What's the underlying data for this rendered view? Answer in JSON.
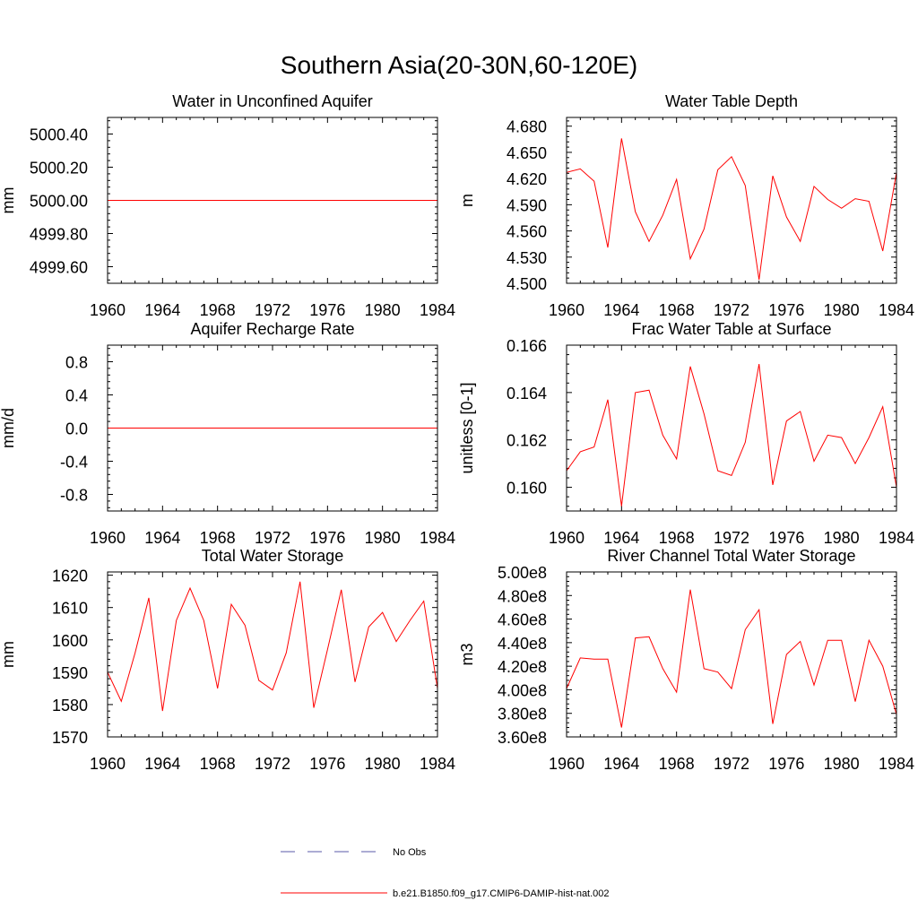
{
  "figure": {
    "title": "Southern Asia(20-30N,60-120E)"
  },
  "legend": [
    {
      "label": "No Obs",
      "color": "#5a5aa8",
      "style": "dashed"
    },
    {
      "label": "b.e21.B1850.f09_g17.CMIP6-DAMIP-hist-nat.002",
      "color": "#ff0000",
      "style": "solid"
    }
  ],
  "chart_data": [
    {
      "type": "line",
      "title": "Water in Unconfined Aquifer",
      "ylabel": "mm",
      "xlim": [
        1960,
        1984
      ],
      "ylim": [
        4999.5,
        5000.5
      ],
      "xticks": [
        1960,
        1964,
        1968,
        1972,
        1976,
        1980,
        1984
      ],
      "xtick_labels": [
        "1960",
        "1964",
        "1968",
        "1972",
        "1976",
        "1980",
        "1984"
      ],
      "yticks": [
        4999.6,
        4999.8,
        5000.0,
        5000.2,
        5000.4
      ],
      "ytick_labels": [
        "4999.60",
        "4999.80",
        "5000.00",
        "5000.20",
        "5000.40"
      ],
      "x": [
        1960,
        1961,
        1962,
        1963,
        1964,
        1965,
        1966,
        1967,
        1968,
        1969,
        1970,
        1971,
        1972,
        1973,
        1974,
        1975,
        1976,
        1977,
        1978,
        1979,
        1980,
        1981,
        1982,
        1983,
        1984
      ],
      "series": [
        {
          "color": "#ff0000",
          "values": [
            5000,
            5000,
            5000,
            5000,
            5000,
            5000,
            5000,
            5000,
            5000,
            5000,
            5000,
            5000,
            5000,
            5000,
            5000,
            5000,
            5000,
            5000,
            5000,
            5000,
            5000,
            5000,
            5000,
            5000,
            5000
          ]
        }
      ]
    },
    {
      "type": "line",
      "title": "Water Table Depth",
      "ylabel": "m",
      "xlim": [
        1960,
        1984
      ],
      "ylim": [
        4.5,
        4.69
      ],
      "xticks": [
        1960,
        1964,
        1968,
        1972,
        1976,
        1980,
        1984
      ],
      "xtick_labels": [
        "1960",
        "1964",
        "1968",
        "1972",
        "1976",
        "1980",
        "1984"
      ],
      "yticks": [
        4.5,
        4.53,
        4.56,
        4.59,
        4.62,
        4.65,
        4.68
      ],
      "ytick_labels": [
        "4.500",
        "4.530",
        "4.560",
        "4.590",
        "4.620",
        "4.650",
        "4.680"
      ],
      "x": [
        1960,
        1961,
        1962,
        1963,
        1964,
        1965,
        1966,
        1967,
        1968,
        1969,
        1970,
        1971,
        1972,
        1973,
        1974,
        1975,
        1976,
        1977,
        1978,
        1979,
        1980,
        1981,
        1982,
        1983,
        1984
      ],
      "series": [
        {
          "color": "#ff0000",
          "values": [
            4.627,
            4.631,
            4.617,
            4.541,
            4.666,
            4.582,
            4.548,
            4.578,
            4.619,
            4.528,
            4.562,
            4.63,
            4.645,
            4.612,
            4.504,
            4.623,
            4.576,
            4.548,
            4.611,
            4.596,
            4.586,
            4.597,
            4.594,
            4.537,
            4.627
          ]
        }
      ]
    },
    {
      "type": "line",
      "title": "Aquifer Recharge Rate",
      "ylabel": "mm/d",
      "xlim": [
        1960,
        1984
      ],
      "ylim": [
        -1.0,
        1.0
      ],
      "xticks": [
        1960,
        1964,
        1968,
        1972,
        1976,
        1980,
        1984
      ],
      "xtick_labels": [
        "1960",
        "1964",
        "1968",
        "1972",
        "1976",
        "1980",
        "1984"
      ],
      "yticks": [
        -0.8,
        -0.4,
        0.0,
        0.4,
        0.8
      ],
      "ytick_labels": [
        "-0.8",
        "-0.4",
        "0.0",
        "0.4",
        "0.8"
      ],
      "x": [
        1960,
        1961,
        1962,
        1963,
        1964,
        1965,
        1966,
        1967,
        1968,
        1969,
        1970,
        1971,
        1972,
        1973,
        1974,
        1975,
        1976,
        1977,
        1978,
        1979,
        1980,
        1981,
        1982,
        1983,
        1984
      ],
      "series": [
        {
          "color": "#ff0000",
          "values": [
            0,
            0,
            0,
            0,
            0,
            0,
            0,
            0,
            0,
            0,
            0,
            0,
            0,
            0,
            0,
            0,
            0,
            0,
            0,
            0,
            0,
            0,
            0,
            0,
            0
          ]
        }
      ]
    },
    {
      "type": "line",
      "title": "Frac Water Table at Surface",
      "ylabel": "unitless [0-1]",
      "xlim": [
        1960,
        1984
      ],
      "ylim": [
        0.159,
        0.166
      ],
      "xticks": [
        1960,
        1964,
        1968,
        1972,
        1976,
        1980,
        1984
      ],
      "xtick_labels": [
        "1960",
        "1964",
        "1968",
        "1972",
        "1976",
        "1980",
        "1984"
      ],
      "yticks": [
        0.16,
        0.162,
        0.164,
        0.166
      ],
      "ytick_labels": [
        "0.160",
        "0.162",
        "0.164",
        "0.166"
      ],
      "x": [
        1960,
        1961,
        1962,
        1963,
        1964,
        1965,
        1966,
        1967,
        1968,
        1969,
        1970,
        1971,
        1972,
        1973,
        1974,
        1975,
        1976,
        1977,
        1978,
        1979,
        1980,
        1981,
        1982,
        1983,
        1984
      ],
      "series": [
        {
          "color": "#ff0000",
          "values": [
            0.1607,
            0.1615,
            0.1617,
            0.1637,
            0.1592,
            0.164,
            0.1641,
            0.1622,
            0.1612,
            0.1651,
            0.1631,
            0.1607,
            0.1605,
            0.1619,
            0.1652,
            0.1601,
            0.1628,
            0.1632,
            0.1611,
            0.1622,
            0.1621,
            0.161,
            0.1621,
            0.1634,
            0.16
          ]
        }
      ]
    },
    {
      "type": "line",
      "title": "Total Water Storage",
      "ylabel": "mm",
      "xlim": [
        1960,
        1984
      ],
      "ylim": [
        1570,
        1621
      ],
      "xticks": [
        1960,
        1964,
        1968,
        1972,
        1976,
        1980,
        1984
      ],
      "xtick_labels": [
        "1960",
        "1964",
        "1968",
        "1972",
        "1976",
        "1980",
        "1984"
      ],
      "yticks": [
        1570,
        1580,
        1590,
        1600,
        1610,
        1620
      ],
      "ytick_labels": [
        "1570",
        "1580",
        "1590",
        "1600",
        "1610",
        "1620"
      ],
      "x": [
        1960,
        1961,
        1962,
        1963,
        1964,
        1965,
        1966,
        1967,
        1968,
        1969,
        1970,
        1971,
        1972,
        1973,
        1974,
        1975,
        1976,
        1977,
        1978,
        1979,
        1980,
        1981,
        1982,
        1983,
        1984
      ],
      "series": [
        {
          "color": "#ff0000",
          "values": [
            1590,
            1581,
            1596,
            1613,
            1578,
            1606,
            1616,
            1606,
            1585,
            1611,
            1604.5,
            1587.5,
            1584.5,
            1596,
            1618,
            1579,
            1597,
            1615.5,
            1587,
            1604,
            1608.5,
            1599.5,
            1606,
            1612,
            1585
          ]
        }
      ]
    },
    {
      "type": "line",
      "title": "River Channel Total Water Storage",
      "ylabel": "m3",
      "xlim": [
        1960,
        1984
      ],
      "ylim": [
        360000000,
        500000000
      ],
      "xticks": [
        1960,
        1964,
        1968,
        1972,
        1976,
        1980,
        1984
      ],
      "xtick_labels": [
        "1960",
        "1964",
        "1968",
        "1972",
        "1976",
        "1980",
        "1984"
      ],
      "yticks": [
        360000000,
        380000000,
        400000000,
        420000000,
        440000000,
        460000000,
        480000000,
        500000000
      ],
      "ytick_labels": [
        "3.60e8",
        "3.80e8",
        "4.00e8",
        "4.20e8",
        "4.40e8",
        "4.60e8",
        "4.80e8",
        "5.00e8"
      ],
      "x": [
        1960,
        1961,
        1962,
        1963,
        1964,
        1965,
        1966,
        1967,
        1968,
        1969,
        1970,
        1971,
        1972,
        1973,
        1974,
        1975,
        1976,
        1977,
        1978,
        1979,
        1980,
        1981,
        1982,
        1983,
        1984
      ],
      "series": [
        {
          "color": "#ff0000",
          "values": [
            401000000,
            427000000,
            426000000,
            426000000,
            368000000,
            444000000,
            445000000,
            418000000,
            398000000,
            485000000,
            418000000,
            415000000,
            401000000,
            451000000,
            468000000,
            371000000,
            430000000,
            441000000,
            404000000,
            442000000,
            442000000,
            390000000,
            442000000,
            420000000,
            379000000
          ]
        }
      ]
    }
  ]
}
